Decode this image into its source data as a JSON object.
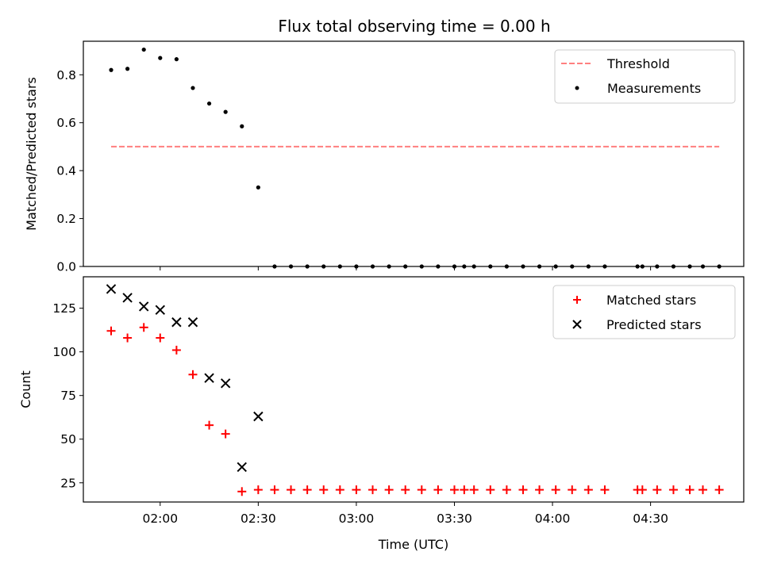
{
  "chart_data": {
    "type": "scatter",
    "title": "Flux total observing time = 0.00 h",
    "xlabel": "Time (UTC)",
    "x_ticks": [
      "02:00",
      "02:30",
      "03:00",
      "03:30",
      "04:00",
      "04:30"
    ],
    "x_tick_minutes": [
      120,
      150,
      180,
      210,
      240,
      270
    ],
    "xlim_minutes": [
      96.5,
      298.5
    ],
    "x_minutes": [
      105,
      110,
      115,
      120,
      125,
      130,
      135,
      140,
      145,
      150,
      155,
      160,
      165,
      170,
      175,
      180,
      185,
      190,
      195,
      200,
      205,
      210,
      213,
      216,
      221,
      226,
      231,
      236,
      241,
      246,
      251,
      256,
      266,
      267.5,
      272,
      277,
      282,
      286,
      291
    ],
    "panels": [
      {
        "ylabel": "Matched/Predicted stars",
        "ylim": [
          0,
          0.94
        ],
        "y_ticks": [
          0.0,
          0.2,
          0.4,
          0.6,
          0.8
        ],
        "y_tick_labels": [
          "0.0",
          "0.2",
          "0.4",
          "0.6",
          "0.8"
        ],
        "threshold": {
          "name": "Threshold",
          "value": 0.5,
          "x_start_minutes": 105,
          "x_end_minutes": 291,
          "color": "#ff7f7f"
        },
        "series": [
          {
            "name": "Measurements",
            "marker": "dot",
            "color": "#000000",
            "values": [
              0.82,
              0.825,
              0.905,
              0.87,
              0.865,
              0.745,
              0.68,
              0.645,
              0.585,
              0.33,
              0,
              0,
              0,
              0,
              0,
              0,
              0,
              0,
              0,
              0,
              0,
              0,
              0,
              0,
              0,
              0,
              0,
              0,
              0,
              0,
              0,
              0,
              0,
              0,
              0,
              0,
              0,
              0,
              0
            ]
          }
        ],
        "legend": {
          "placement": "upper-right",
          "entries": [
            "Threshold",
            "Measurements"
          ]
        }
      },
      {
        "ylabel": "Count",
        "ylim": [
          14,
          143
        ],
        "y_ticks": [
          25,
          50,
          75,
          100,
          125
        ],
        "y_tick_labels": [
          "25",
          "50",
          "75",
          "100",
          "125"
        ],
        "series": [
          {
            "name": "Matched stars",
            "marker": "plus",
            "color": "#ff0000",
            "values": [
              112,
              108,
              114,
              108,
              101,
              87,
              58,
              53,
              20,
              21,
              21,
              21,
              21,
              21,
              21,
              21,
              21,
              21,
              21,
              21,
              21,
              21,
              21,
              21,
              21,
              21,
              21,
              21,
              21,
              21,
              21,
              21,
              21,
              21,
              21,
              21,
              21,
              21,
              21
            ]
          },
          {
            "name": "Predicted stars",
            "marker": "x",
            "color": "#000000",
            "values": [
              136,
              131,
              126,
              124,
              117,
              117,
              85,
              82,
              34,
              63
            ]
          }
        ],
        "legend": {
          "placement": "upper-right",
          "entries": [
            "Matched stars",
            "Predicted stars"
          ]
        }
      }
    ]
  }
}
